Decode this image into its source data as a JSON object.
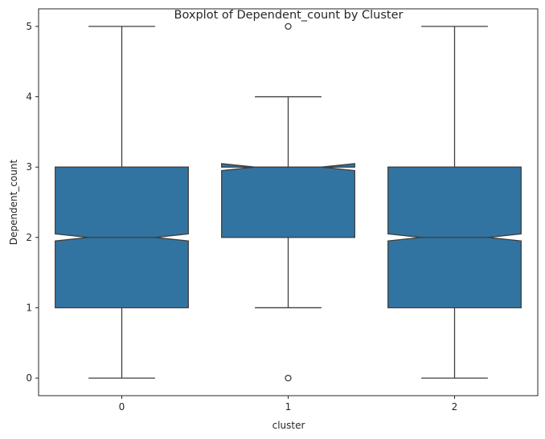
{
  "chart_data": {
    "type": "boxplot",
    "title": "Boxplot of Dependent_count by Cluster",
    "xlabel": "cluster",
    "ylabel": "Dependent_count",
    "categories": [
      "0",
      "1",
      "2"
    ],
    "ylim": [
      -0.25,
      5.25
    ],
    "yticks": [
      "0",
      "1",
      "2",
      "3",
      "4",
      "5"
    ],
    "grid": false,
    "notched": true,
    "box_color": "#3274a1",
    "line_color": "#3f3f3f",
    "boxes": [
      {
        "category": "0",
        "whisker_low": 0,
        "q1": 1,
        "median": 2,
        "q3": 3,
        "whisker_high": 5,
        "notch_low": 1.95,
        "notch_high": 2.05,
        "outliers": []
      },
      {
        "category": "1",
        "whisker_low": 1,
        "q1": 2,
        "median": 3,
        "q3": 3,
        "whisker_high": 4,
        "notch_low": 2.95,
        "notch_high": 3.05,
        "outliers": [
          0,
          5
        ]
      },
      {
        "category": "2",
        "whisker_low": 0,
        "q1": 1,
        "median": 2,
        "q3": 3,
        "whisker_high": 5,
        "notch_low": 1.95,
        "notch_high": 2.05,
        "outliers": []
      }
    ]
  }
}
